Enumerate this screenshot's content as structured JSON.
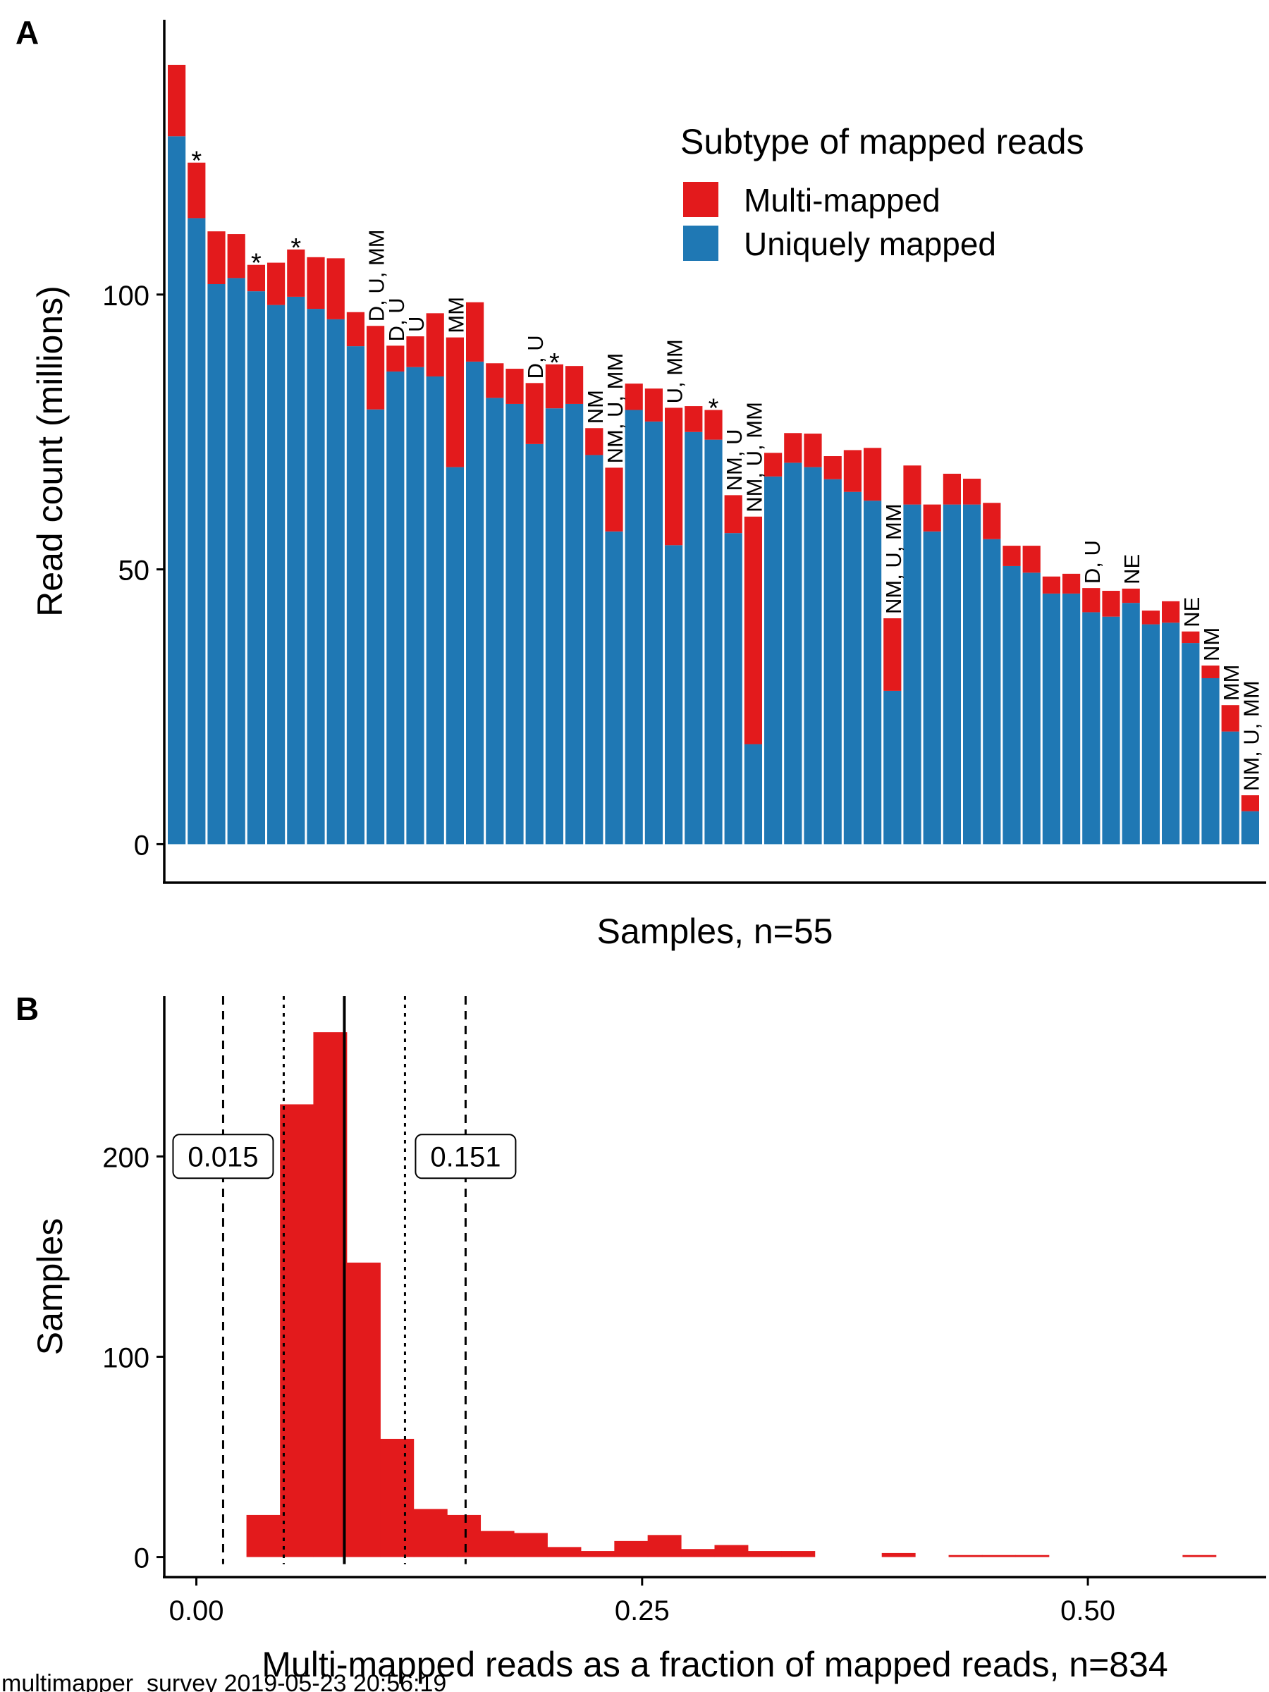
{
  "footer": "multimapper_survey 2019-05-23 20:56:19",
  "chart_data": [
    {
      "panel": "A",
      "type": "bar",
      "stacked": true,
      "xlabel": "Samples, n=55",
      "ylabel": "Read count (millions)",
      "yticks": [
        0,
        50,
        100
      ],
      "ylim": [
        -7,
        150
      ],
      "legend": {
        "title": "Subtype of mapped reads",
        "position": "top-right",
        "entries": [
          {
            "name": "Multi-mapped",
            "color": "#e31a1c"
          },
          {
            "name": "Uniquely mapped",
            "color": "#1f78b4"
          }
        ]
      },
      "series": [
        {
          "name": "Uniquely mapped",
          "color": "#1f78b4",
          "values": [
            128.8,
            113.9,
            101.9,
            103.0,
            100.6,
            98.1,
            99.6,
            97.4,
            95.5,
            90.6,
            79.1,
            86.0,
            86.8,
            85.1,
            68.6,
            87.8,
            81.2,
            80.1,
            72.8,
            79.3,
            80.1,
            70.8,
            56.9,
            79.0,
            76.9,
            54.4,
            75.0,
            73.6,
            56.6,
            18.2,
            66.9,
            69.4,
            68.6,
            66.4,
            64.1,
            62.5,
            27.9,
            61.8,
            56.9,
            61.8,
            61.8,
            55.5,
            50.6,
            49.4,
            45.6,
            45.6,
            42.2,
            41.4,
            43.9,
            40.0,
            40.3,
            36.6,
            30.2,
            20.5,
            6.0
          ]
        },
        {
          "name": "Multi-mapped",
          "color": "#e31a1c",
          "values": [
            13.0,
            10.1,
            9.6,
            8.0,
            4.8,
            7.7,
            8.6,
            9.4,
            11.1,
            6.2,
            15.2,
            4.7,
            5.6,
            11.5,
            23.6,
            10.8,
            6.3,
            6.4,
            11.1,
            8.0,
            6.9,
            4.9,
            11.6,
            4.8,
            6.0,
            25.0,
            4.7,
            5.4,
            6.9,
            41.4,
            4.3,
            5.4,
            6.1,
            4.2,
            7.6,
            9.6,
            13.2,
            7.1,
            4.9,
            5.6,
            4.7,
            6.6,
            3.7,
            4.9,
            3.1,
            3.6,
            4.4,
            4.7,
            2.6,
            2.5,
            3.9,
            2.1,
            2.3,
            4.8,
            2.9
          ]
        }
      ],
      "annotations": [
        "",
        "*",
        "",
        "",
        "*",
        "",
        "*",
        "",
        "",
        "",
        "D, U, MM",
        "D, U",
        "U",
        "",
        "MM",
        "",
        "",
        "",
        "D, U",
        "*",
        "",
        "NM",
        "NM, U, MM",
        "",
        "",
        "U, MM",
        "",
        "*",
        "NM, U",
        "NM, U, MM",
        "",
        "",
        "",
        "",
        "",
        "",
        "NM, U, MM",
        "",
        "",
        "",
        "",
        "",
        "",
        "",
        "",
        "",
        "D, U",
        "",
        "NE",
        "",
        "",
        "NE",
        "NM",
        "MM",
        "NM, U, MM"
      ]
    },
    {
      "panel": "B",
      "type": "histogram",
      "xlabel": "Multi-mapped reads as a fraction of mapped reads, n=834",
      "ylabel": "Samples",
      "xticks": [
        "0.00",
        "0.25",
        "0.50"
      ],
      "yticks": [
        0,
        100,
        200
      ],
      "xlim": [
        -0.018,
        0.6
      ],
      "ylim": [
        -10,
        280
      ],
      "bin_width": 0.01875,
      "bins_start": [
        0.0281,
        0.0469,
        0.0656,
        0.0844,
        0.1031,
        0.1219,
        0.1406,
        0.1594,
        0.1781,
        0.1969,
        0.2156,
        0.2344,
        0.2531,
        0.2719,
        0.2906,
        0.3094,
        0.3281,
        0.3469,
        0.3656,
        0.3844,
        0.4031,
        0.4219,
        0.4406,
        0.4594,
        0.4781,
        0.4969,
        0.5156,
        0.5344,
        0.5531,
        0.5719
      ],
      "counts": [
        21,
        226,
        262,
        147,
        59,
        24,
        21,
        13,
        12,
        5,
        3,
        8,
        11,
        4,
        6,
        3,
        3,
        0,
        0,
        2,
        0,
        1,
        1,
        1,
        0,
        0,
        0,
        0,
        1,
        0
      ],
      "lines": [
        {
          "x": 0.015,
          "style": "dashed",
          "label": "0.015"
        },
        {
          "x": 0.049,
          "style": "dotted"
        },
        {
          "x": 0.083,
          "style": "solid"
        },
        {
          "x": 0.117,
          "style": "dotted"
        },
        {
          "x": 0.151,
          "style": "dashed",
          "label": "0.151"
        }
      ],
      "label_y": 200,
      "fill": "#e31a1c"
    }
  ]
}
